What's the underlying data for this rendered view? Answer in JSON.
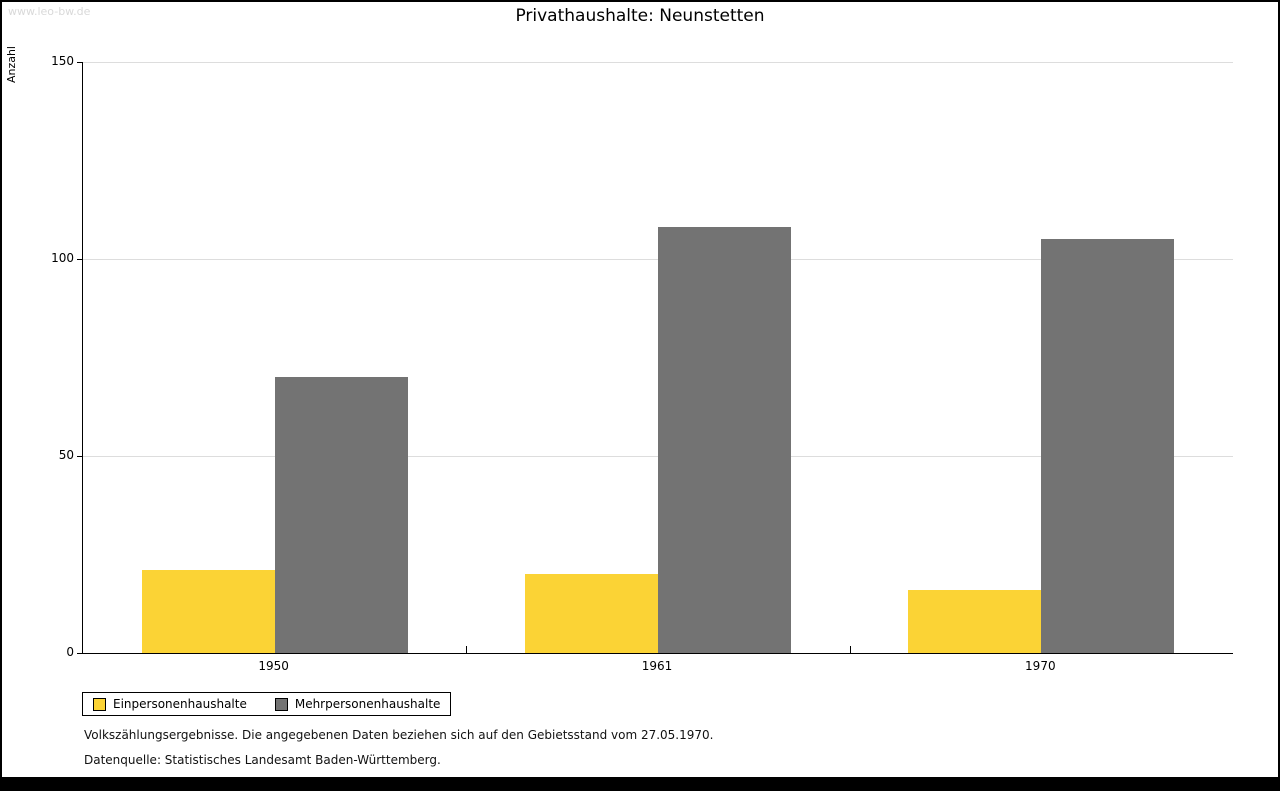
{
  "watermark": "www.leo-bw.de",
  "chart_data": {
    "type": "bar",
    "title": "Privathaushalte: Neunstetten",
    "ylabel": "Anzahl",
    "ylim": [
      0,
      150
    ],
    "yticks": [
      0,
      50,
      100,
      150
    ],
    "categories": [
      "1950",
      "1961",
      "1970"
    ],
    "series": [
      {
        "name": "Einpersonenhaushalte",
        "color": "#FBD335",
        "values": [
          21,
          20,
          16
        ]
      },
      {
        "name": "Mehrpersonenhaushalte",
        "color": "#737373",
        "values": [
          70,
          108,
          105
        ]
      }
    ],
    "grid": true,
    "legend_position": "bottom-left"
  },
  "footnotes": {
    "line1": "Volkszählungsergebnisse. Die angegebenen Daten beziehen sich auf den Gebietsstand vom 27.05.1970.",
    "line2": "Datenquelle: Statistisches Landesamt Baden-Württemberg."
  }
}
